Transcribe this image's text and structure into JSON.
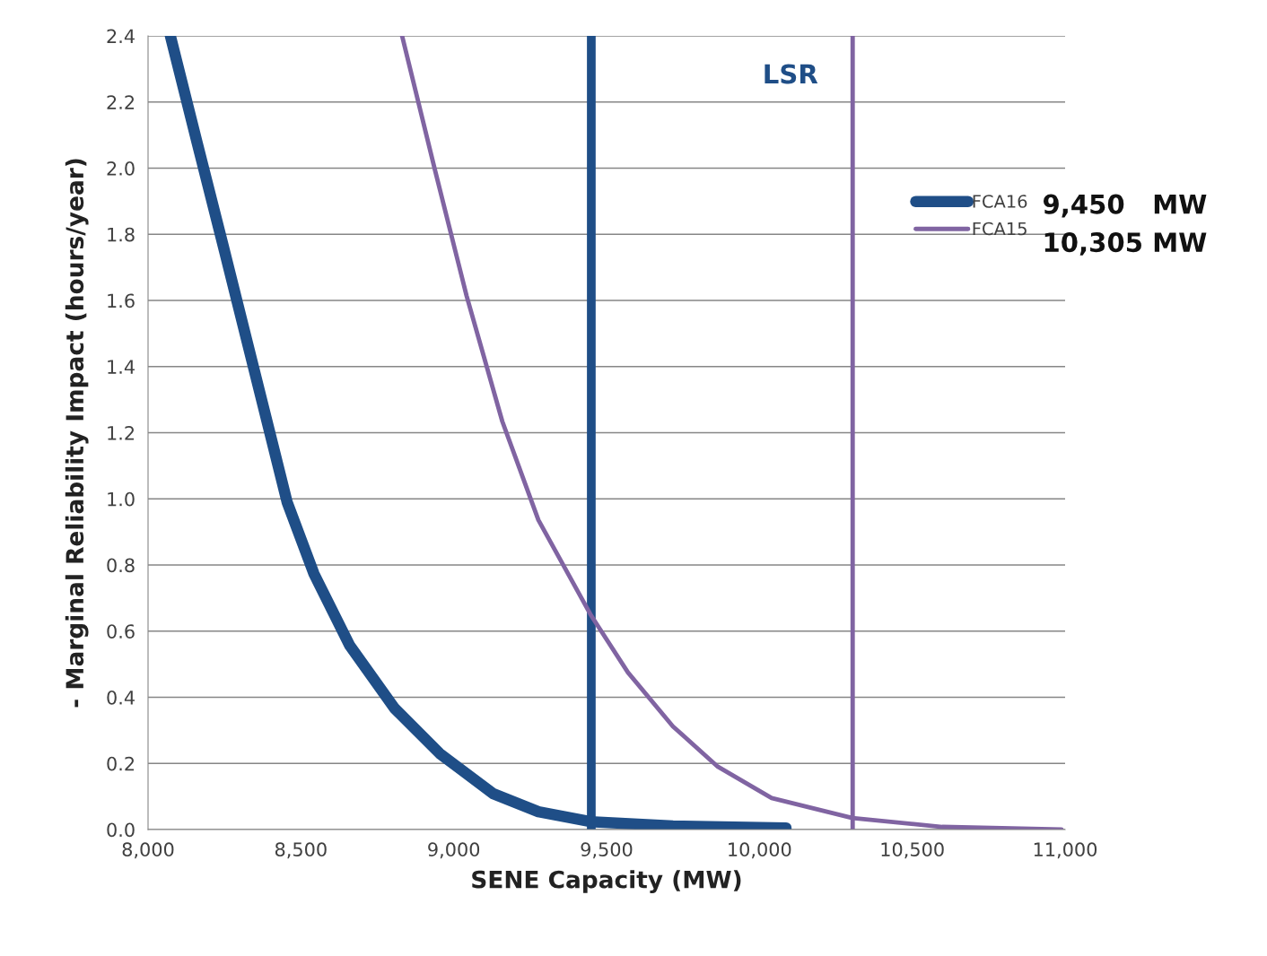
{
  "chart_data": {
    "type": "line",
    "xlabel": "SENE Capacity (MW)",
    "ylabel": "- Marginal Reliability Impact (hours/year)",
    "xlim": [
      8000,
      11000
    ],
    "ylim": [
      0,
      2.4
    ],
    "xticks": [
      {
        "value": 8000,
        "label": "8,000"
      },
      {
        "value": 8500,
        "label": "8,500"
      },
      {
        "value": 9000,
        "label": "9,000"
      },
      {
        "value": 9500,
        "label": "9,500"
      },
      {
        "value": 10000,
        "label": "10,000"
      },
      {
        "value": 10500,
        "label": "10,500"
      },
      {
        "value": 11000,
        "label": "11,000"
      }
    ],
    "yticks": [
      {
        "value": 0,
        "label": "0.0"
      },
      {
        "value": 0.2,
        "label": "0.2"
      },
      {
        "value": 0.4,
        "label": "0.4"
      },
      {
        "value": 0.6,
        "label": "0.6"
      },
      {
        "value": 0.8,
        "label": "0.8"
      },
      {
        "value": 1.0,
        "label": "1.0"
      },
      {
        "value": 1.2,
        "label": "1.2"
      },
      {
        "value": 1.4,
        "label": "1.4"
      },
      {
        "value": 1.6,
        "label": "1.6"
      },
      {
        "value": 1.8,
        "label": "1.8"
      },
      {
        "value": 2.0,
        "label": "2.0"
      },
      {
        "value": 2.2,
        "label": "2.2"
      },
      {
        "value": 2.4,
        "label": "2.4"
      }
    ],
    "grid": "y",
    "legend": "right",
    "marker": "none",
    "line_style": "solid",
    "series": [
      {
        "name": "FCA16",
        "color": "#1f4e87",
        "x": [
          8073,
          8161,
          8250,
          8338,
          8455,
          8543,
          8660,
          8807,
          8954,
          9130,
          9277,
          9447,
          9717,
          10087
        ],
        "values": [
          2.4,
          2.075,
          1.75,
          1.424,
          0.99,
          0.773,
          0.556,
          0.366,
          0.23,
          0.108,
          0.054,
          0.024,
          0.011,
          0.005
        ]
      },
      {
        "name": "FCA15",
        "color": "#8064a2",
        "x": [
          8831,
          8939,
          9042,
          9159,
          9277,
          9447,
          9570,
          9717,
          9864,
          10040,
          10304,
          10598,
          10988
        ],
        "values": [
          2.4,
          1.993,
          1.614,
          1.234,
          0.936,
          0.651,
          0.475,
          0.312,
          0.19,
          0.095,
          0.035,
          0.008,
          0.0
        ]
      }
    ],
    "ref_lines": [
      {
        "axis": "x",
        "value": 9450,
        "color": "#1f4e87"
      },
      {
        "axis": "x",
        "value": 10305,
        "color": "#8064a2"
      }
    ],
    "annotations": [
      "LSR",
      "9,450   MW",
      "10,305 MW"
    ]
  }
}
